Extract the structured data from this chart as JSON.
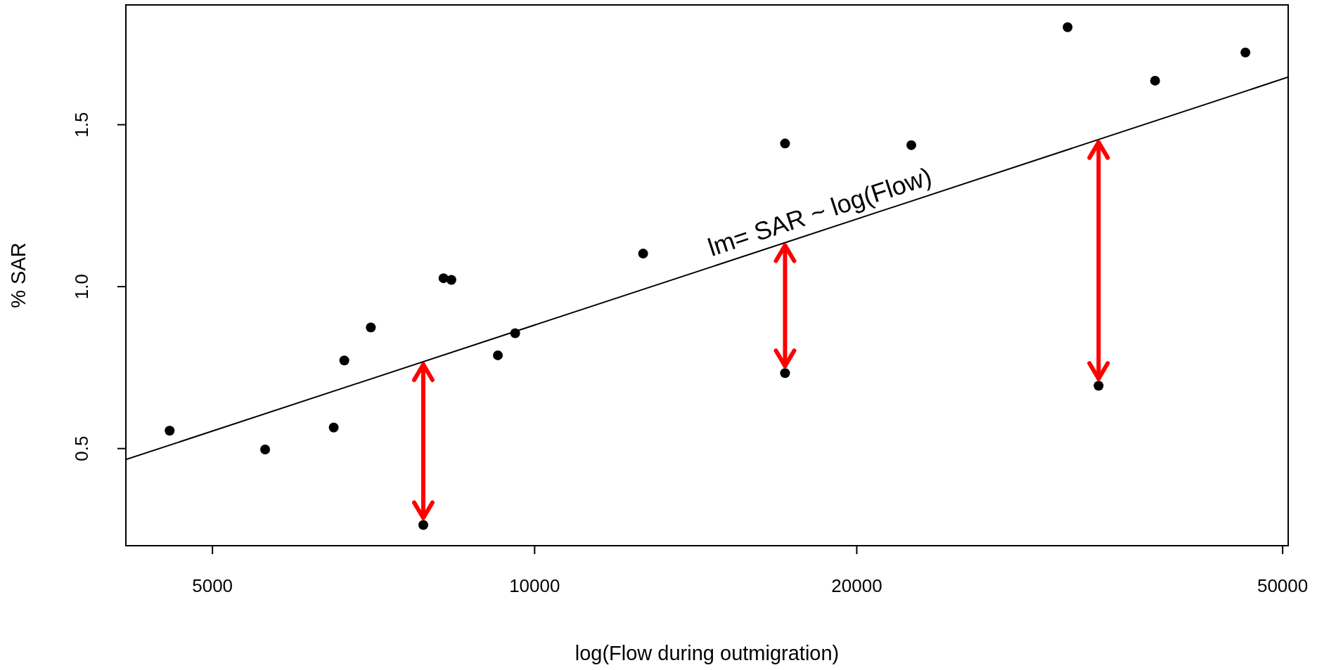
{
  "chart_data": {
    "type": "scatter",
    "xlabel": "log(Flow during outmigration)",
    "ylabel": "% SAR",
    "log": "x",
    "marker": "circle",
    "xlim": [
      4150,
      50600
    ],
    "xticks": [
      5000,
      10000,
      20000,
      50000
    ],
    "ylim": [
      0.2,
      1.87
    ],
    "yticks": [
      {
        "value": 0.5,
        "label": "0.5"
      },
      {
        "value": 1,
        "label": "1.0"
      },
      {
        "value": 1.5,
        "label": "1.5"
      }
    ],
    "series": [
      {
        "color": "#000000",
        "x": [
          4560,
          5600,
          6490,
          6640,
          7030,
          7870,
          8220,
          8360,
          9240,
          9590,
          12630,
          17140,
          17140,
          22490,
          31480,
          33650,
          38000,
          46150
        ],
        "values": [
          0.555,
          0.497,
          0.565,
          0.772,
          0.874,
          0.264,
          1.026,
          1.021,
          0.788,
          0.856,
          1.102,
          1.442,
          0.733,
          1.437,
          1.801,
          0.694,
          1.636,
          1.723
        ]
      },
      {
        "type": "line",
        "color": "#000000",
        "marker": "none",
        "x": [
          4150,
          50600
        ],
        "values": [
          0.466,
          1.647
        ]
      }
    ],
    "annotations": [
      {
        "text": "lm= SAR ~ log(Flow)",
        "x": 18700,
        "y": 1.177
      }
    ]
  }
}
